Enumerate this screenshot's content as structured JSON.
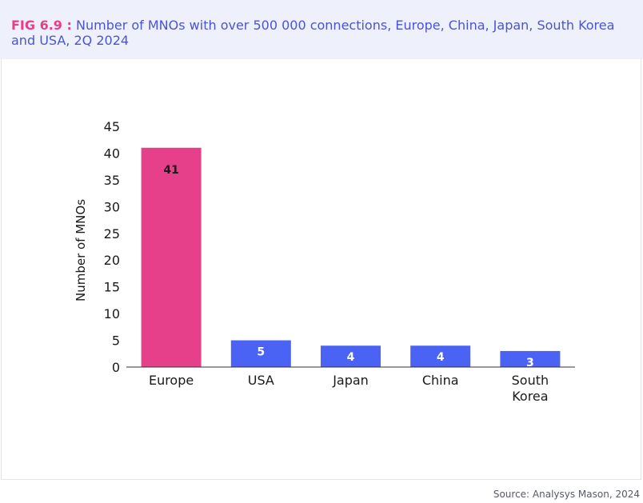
{
  "header": {
    "fig_label": "FIG 6.9 :",
    "title": "Number of MNOs with over 500 000 connections, Europe, China, Japan, South Korea and USA, 2Q 2024"
  },
  "source": "Source: Analysys Mason, 2024",
  "colors": {
    "europe": "#e6408b",
    "others": "#4a63f5",
    "header_bg": "#eef0fb",
    "title_text": "#4b55d1",
    "fig_label": "#e6408b"
  },
  "chart_data": {
    "type": "bar",
    "categories": [
      "Europe",
      "USA",
      "Japan",
      "China",
      "South Korea"
    ],
    "values": [
      41,
      5,
      4,
      4,
      3
    ],
    "data_labels": [
      "41",
      "5",
      "4",
      "4",
      "3"
    ],
    "ylabel": "Number of MNOs",
    "xlabel": "",
    "ylim": [
      0,
      45
    ],
    "yticks": [
      0,
      5,
      10,
      15,
      20,
      25,
      30,
      35,
      40,
      45
    ],
    "grid": false,
    "legend": "none"
  }
}
